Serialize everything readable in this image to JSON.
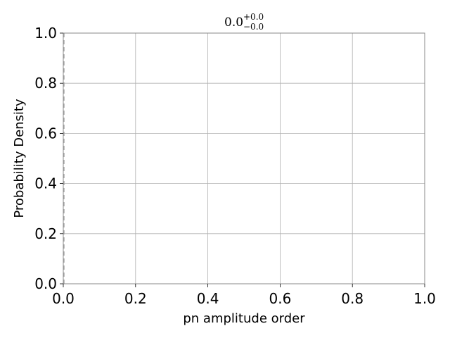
{
  "chart_data": {
    "type": "line",
    "title": {
      "value": "0.0",
      "upper": "+0.0",
      "lower": "−0.0"
    },
    "xlabel": "pn amplitude order",
    "ylabel": "Probability Density",
    "xlim": [
      0.0,
      1.0
    ],
    "ylim": [
      0.0,
      1.0
    ],
    "x_ticks": [
      "0.0",
      "0.2",
      "0.4",
      "0.6",
      "0.8",
      "1.0"
    ],
    "y_ticks": [
      "0.0",
      "0.2",
      "0.4",
      "0.6",
      "0.8",
      "1.0"
    ],
    "grid": true,
    "series": [],
    "reference_lines": [
      {
        "orientation": "vertical",
        "x": 0.0,
        "style": "dashed",
        "color": "#aaaaaa"
      }
    ],
    "colors": {
      "grid": "#b0b0b0",
      "spine": "#888888",
      "reference": "#aaaaaa"
    }
  }
}
